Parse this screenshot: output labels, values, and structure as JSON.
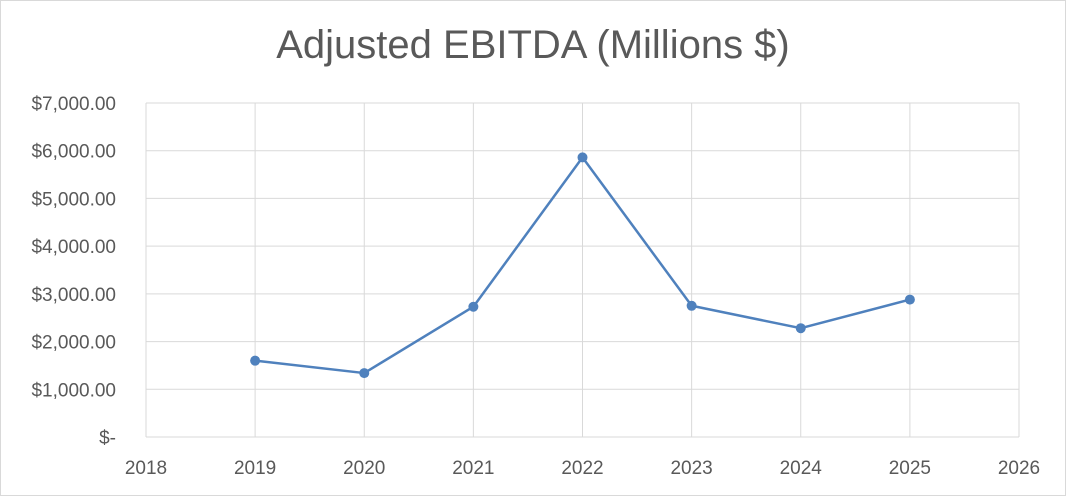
{
  "chart_data": {
    "type": "line",
    "title": "Adjusted EBITDA (Millions $)",
    "xlabel": "",
    "ylabel": "",
    "x": [
      2019,
      2020,
      2021,
      2022,
      2023,
      2024,
      2025
    ],
    "series": [
      {
        "values": [
          1600,
          1340,
          2730,
          5860,
          2750,
          2280,
          2880
        ],
        "color": "#4f81bd"
      }
    ],
    "xlim": [
      2018,
      2026
    ],
    "ylim": [
      0,
      7000
    ],
    "x_ticks": [
      "2018",
      "2019",
      "2020",
      "2021",
      "2022",
      "2023",
      "2024",
      "2025",
      "2026"
    ],
    "y_ticks": [
      "$-",
      "$1,000.00",
      "$2,000.00",
      "$3,000.00",
      "$4,000.00",
      "$5,000.00",
      "$6,000.00",
      "$7,000.00"
    ],
    "grid": true,
    "legend": "none",
    "gridline_color": "#d9d9d9",
    "text_color": "#595959"
  }
}
